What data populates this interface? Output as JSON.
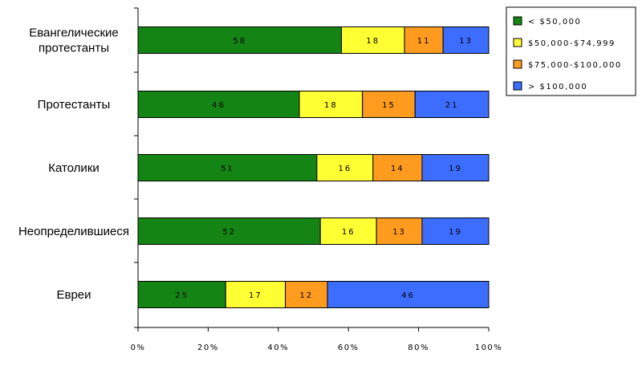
{
  "chart_data": {
    "type": "bar",
    "orientation": "horizontal",
    "stacked": true,
    "categories": [
      [
        "Евангелические",
        "протестанты"
      ],
      [
        "Протестанты"
      ],
      [
        "Католики"
      ],
      [
        "Неопределившиеся"
      ],
      [
        "Евреи"
      ]
    ],
    "series": [
      {
        "name": "< $50,000",
        "color": "#148414",
        "values": [
          58,
          46,
          51,
          52,
          25
        ]
      },
      {
        "name": "$50,000-$74,999",
        "color": "#ffff33",
        "values": [
          18,
          18,
          16,
          16,
          17
        ]
      },
      {
        "name": "$75,000-$100,000",
        "color": "#ff9b1f",
        "values": [
          11,
          15,
          14,
          13,
          12
        ]
      },
      {
        "name": "> $100,000",
        "color": "#3d6dff",
        "values": [
          13,
          21,
          19,
          19,
          46
        ]
      }
    ],
    "xlim": [
      0,
      100
    ],
    "x_ticks": [
      "0%",
      "20%",
      "40%",
      "60%",
      "80%",
      "100%"
    ],
    "x_tick_values": [
      0,
      20,
      40,
      60,
      80,
      100
    ],
    "grid": false,
    "legend_position": "top-right",
    "title": "",
    "xlabel": "",
    "ylabel": ""
  }
}
